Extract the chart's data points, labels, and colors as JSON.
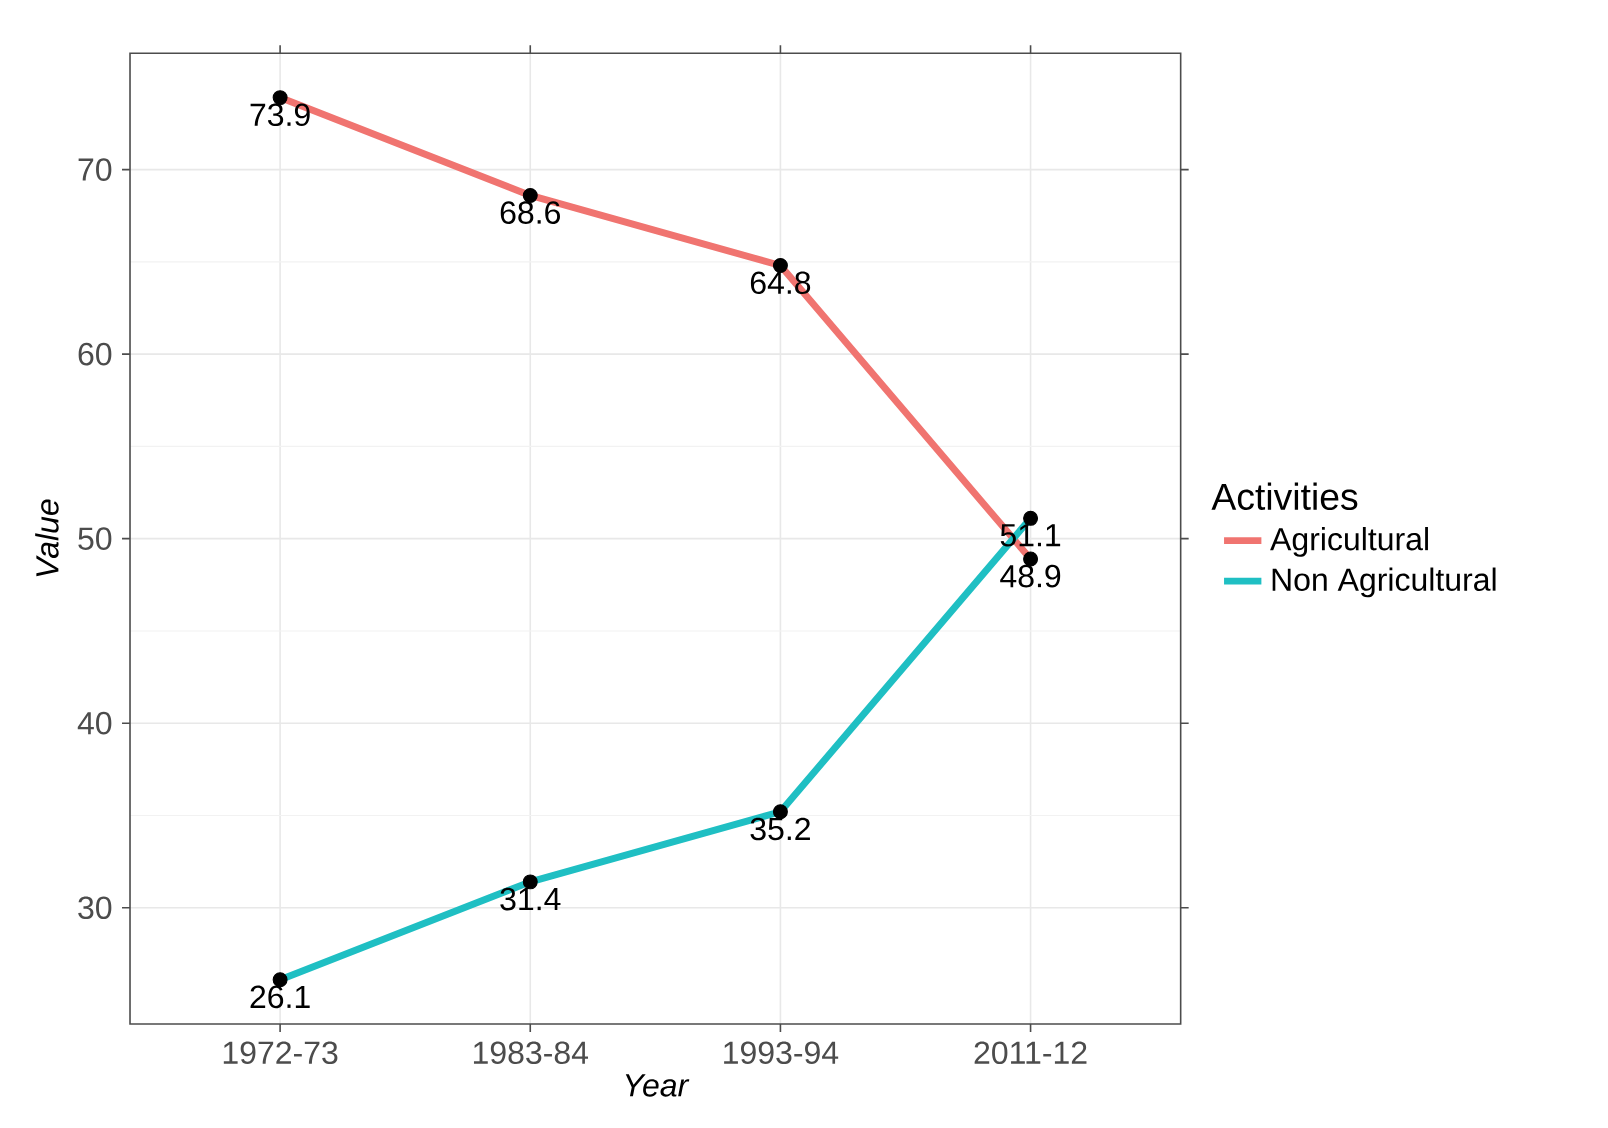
{
  "chart_data": {
    "type": "line",
    "xlabel": "Year",
    "ylabel": "Value",
    "legend_title": "Activities",
    "categories": [
      "1972-73",
      "1983-84",
      "1993-94",
      "2011-12"
    ],
    "series": [
      {
        "name": "Agricultural",
        "color": "#f07470",
        "values": [
          73.9,
          68.6,
          64.8,
          48.9
        ]
      },
      {
        "name": "Non Agricultural",
        "color": "#1fbfc3",
        "values": [
          26.1,
          31.4,
          35.2,
          51.1
        ]
      }
    ],
    "ylim": [
      23.7,
      76.3
    ],
    "yticks": [
      30,
      40,
      50,
      60,
      70
    ],
    "grid": true,
    "legend": "right",
    "marker": "circle",
    "line_style": "solid",
    "data_labels": true
  }
}
